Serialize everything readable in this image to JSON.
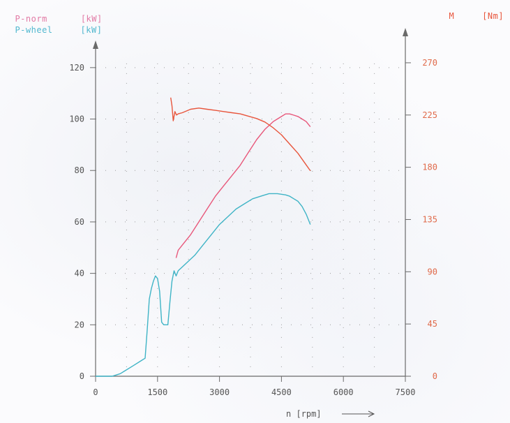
{
  "legend": {
    "p_norm": {
      "label": "P-norm",
      "unit": "[kW]"
    },
    "p_wheel": {
      "label": "P-wheel",
      "unit": "[kW]"
    },
    "torque": {
      "label": "M",
      "unit": "[Nm]"
    }
  },
  "colors": {
    "p_norm": "#e8577a",
    "p_wheel": "#3fb4c6",
    "torque": "#e8553c",
    "axis": "#6a6a6a",
    "left_ticks": "#555555",
    "right_ticks": "#e06a4a",
    "label_pink": "#e27aa5",
    "label_cyan": "#52b8cf"
  },
  "chart_data": {
    "type": "line",
    "xlabel": "n [rpm]",
    "xlim": [
      0,
      7500
    ],
    "x_ticks": [
      "0",
      "1500",
      "3000",
      "4500",
      "6000",
      "7500"
    ],
    "ylim_left": [
      0,
      130
    ],
    "y_ticks_left": [
      "0",
      "20",
      "40",
      "60",
      "80",
      "100",
      "120"
    ],
    "ylim_right": [
      0,
      288
    ],
    "y_ticks_right": [
      "0",
      "45",
      "90",
      "135",
      "180",
      "225",
      "270"
    ],
    "grid": true,
    "series": [
      {
        "name": "P-norm",
        "axis": "left",
        "x": [
          1950,
          2000,
          2100,
          2300,
          2500,
          2700,
          2900,
          3100,
          3300,
          3500,
          3700,
          3900,
          4100,
          4300,
          4400,
          4500,
          4600,
          4700,
          4800,
          4900,
          5000,
          5100,
          5200
        ],
        "y": [
          46,
          49,
          51,
          55,
          60,
          65,
          70,
          74,
          78,
          82,
          87,
          92,
          96,
          99,
          100,
          101,
          102,
          102,
          101.5,
          101,
          100,
          99,
          97
        ]
      },
      {
        "name": "P-wheel",
        "axis": "left",
        "x": [
          0,
          400,
          500,
          600,
          700,
          900,
          1100,
          1200,
          1250,
          1300,
          1350,
          1400,
          1450,
          1500,
          1550,
          1600,
          1650,
          1700,
          1750,
          1800,
          1850,
          1900,
          1950,
          2000,
          2200,
          2400,
          2600,
          2800,
          3000,
          3200,
          3400,
          3600,
          3800,
          4000,
          4200,
          4400,
          4600,
          4700,
          4800,
          4900,
          5000,
          5100,
          5200
        ],
        "y": [
          0,
          0,
          0.5,
          1,
          2,
          4,
          6,
          7,
          18,
          30,
          34,
          37,
          39,
          38,
          33,
          21,
          20,
          20,
          20,
          29,
          37,
          41,
          39,
          41,
          44,
          47,
          51,
          55,
          59,
          62,
          65,
          67,
          69,
          70,
          71,
          71,
          70.5,
          70,
          69,
          68,
          66,
          63,
          59
        ]
      },
      {
        "name": "M",
        "axis": "right",
        "x": [
          1820,
          1850,
          1880,
          1920,
          1960,
          2000,
          2100,
          2300,
          2500,
          2700,
          2900,
          3100,
          3300,
          3500,
          3700,
          3900,
          4100,
          4300,
          4500,
          4700,
          4900,
          5100,
          5200
        ],
        "y": [
          240,
          233,
          220,
          228,
          225,
          226,
          227,
          230,
          231,
          230,
          229,
          228,
          227,
          226,
          224,
          222,
          219,
          214,
          208,
          200,
          192,
          182,
          177
        ]
      }
    ]
  }
}
